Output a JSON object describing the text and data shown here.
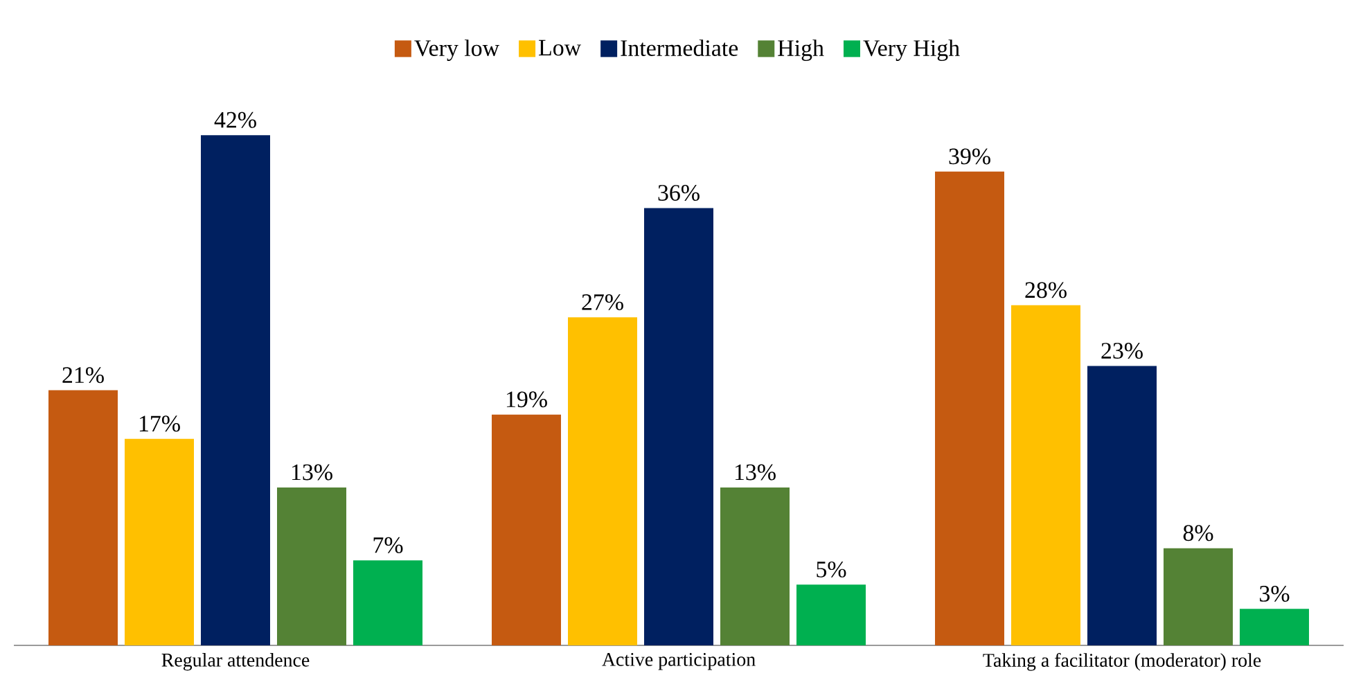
{
  "chart_data": {
    "type": "bar",
    "categories": [
      "Regular attendence",
      "Active participation",
      "Taking a facilitator (moderator) role"
    ],
    "series": [
      {
        "name": "Very low",
        "color": "#c55a11",
        "values": [
          21,
          19,
          39
        ],
        "value_labels": [
          "21%",
          "19%",
          "39%"
        ]
      },
      {
        "name": "Low",
        "color": "#ffc000",
        "values": [
          17,
          27,
          28
        ],
        "value_labels": [
          "17%",
          "27%",
          "28%"
        ]
      },
      {
        "name": "Intermediate",
        "color": "#002060",
        "values": [
          42,
          36,
          23
        ],
        "value_labels": [
          "42%",
          "36%",
          "23%"
        ]
      },
      {
        "name": "High",
        "color": "#548235",
        "values": [
          13,
          13,
          8
        ],
        "value_labels": [
          "13%",
          "13%",
          "8%"
        ]
      },
      {
        "name": "Very High",
        "color": "#00b050",
        "values": [
          7,
          5,
          3
        ],
        "value_labels": [
          "7%",
          "5%",
          "3%"
        ]
      }
    ],
    "legend": "top"
  }
}
